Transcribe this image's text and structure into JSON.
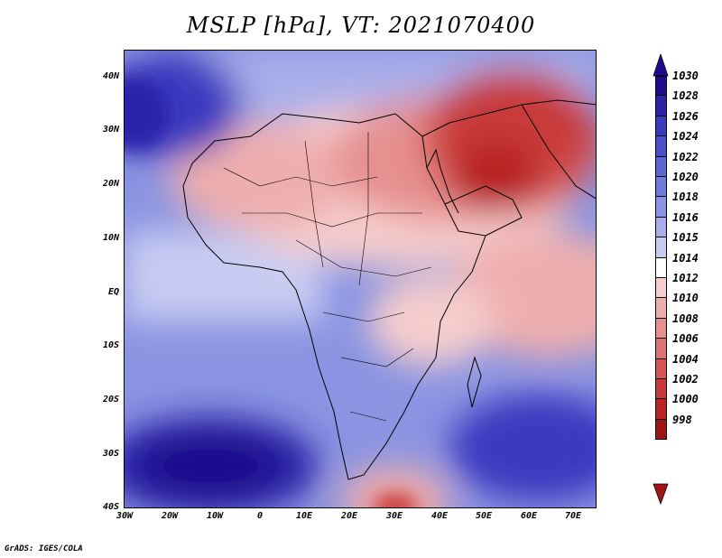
{
  "title": "MSLP [hPa], VT: 2021070400",
  "credit": "GrADS: IGES/COLA",
  "map": {
    "lat_ticks": [
      "40N",
      "30N",
      "20N",
      "10N",
      "EQ",
      "10S",
      "20S",
      "30S",
      "40S"
    ],
    "lon_ticks": [
      "30W",
      "20W",
      "10W",
      "0",
      "10E",
      "20E",
      "30E",
      "40E",
      "50E",
      "60E",
      "70E"
    ]
  },
  "colorbar": {
    "levels": [
      "1030",
      "1028",
      "1026",
      "1024",
      "1022",
      "1020",
      "1018",
      "1016",
      "1015",
      "1014",
      "1012",
      "1010",
      "1008",
      "1006",
      "1004",
      "1002",
      "1000",
      "998"
    ],
    "colors": [
      "#1c0c8c",
      "#2c22a8",
      "#3a3ac0",
      "#4a50cc",
      "#5c66d4",
      "#707cdc",
      "#8a94e2",
      "#a8aeea",
      "#c8ccf2",
      "#ffffff",
      "#f6cccc",
      "#eeaeae",
      "#e69090",
      "#de7272",
      "#d65454",
      "#c83a3a",
      "#b82424",
      "#a01414"
    ]
  }
}
